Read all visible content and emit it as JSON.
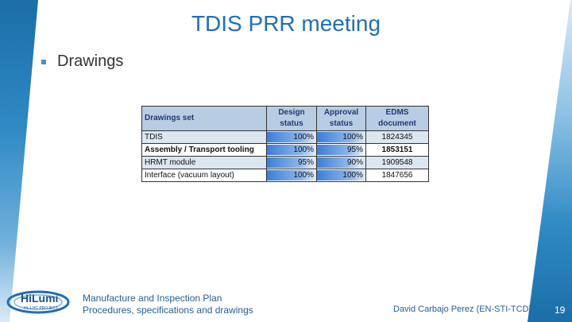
{
  "title": "TDIS PRR meeting",
  "bullet": "Drawings",
  "table": {
    "headers": {
      "set": "Drawings set",
      "design": [
        "Design",
        "status"
      ],
      "approval": [
        "Approval",
        "status"
      ],
      "edms": [
        "EDMS",
        "document"
      ]
    },
    "rows": [
      {
        "name": "TDIS",
        "design": "100%",
        "design_pct": 100,
        "approval": "100%",
        "approval_pct": 100,
        "edms": "1824345",
        "bold": false
      },
      {
        "name": "Assembly / Transport tooling",
        "design": "100%",
        "design_pct": 100,
        "approval": "95%",
        "approval_pct": 95,
        "edms": "1853151",
        "bold": true
      },
      {
        "name": "HRMT module",
        "design": "95%",
        "design_pct": 95,
        "approval": "90%",
        "approval_pct": 90,
        "edms": "1909548",
        "bold": false
      },
      {
        "name": "Interface (vacuum layout)",
        "design": "100%",
        "design_pct": 100,
        "approval": "100%",
        "approval_pct": 100,
        "edms": "1847656",
        "bold": false
      }
    ]
  },
  "logo": {
    "text": "HiLumi",
    "subtext": "HL-LHC PROJECT"
  },
  "footer": {
    "line1": "Manufacture and Inspection Plan",
    "line2": "Procedures, specifications and drawings",
    "author": "David Carbajo Perez (EN-STI-TCD)",
    "page": "19"
  },
  "colors": {
    "accent": "#1f6fb5",
    "header_bg": "#b8cce4",
    "row_alt": "#dce6f1",
    "bar": "#3b7fd6"
  }
}
